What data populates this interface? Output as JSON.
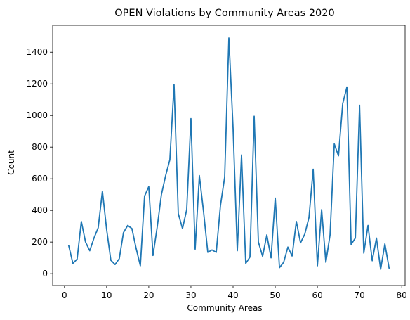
{
  "chart_data": {
    "type": "line",
    "title": "OPEN Violations by Community Areas 2020",
    "xlabel": "Community Areas",
    "ylabel": "Count",
    "xlim": [
      -2.8,
      80.8
    ],
    "ylim": [
      -75,
      1570
    ],
    "xticks": [
      0,
      10,
      20,
      30,
      40,
      50,
      60,
      70,
      80
    ],
    "yticks": [
      0,
      200,
      400,
      600,
      800,
      1000,
      1200,
      1400
    ],
    "grid": false,
    "color": "#1f77b4",
    "x": [
      1,
      2,
      3,
      4,
      5,
      6,
      7,
      8,
      9,
      10,
      11,
      12,
      13,
      14,
      15,
      16,
      17,
      18,
      19,
      20,
      21,
      22,
      23,
      24,
      25,
      26,
      27,
      28,
      29,
      30,
      31,
      32,
      33,
      34,
      35,
      36,
      37,
      38,
      39,
      40,
      41,
      42,
      43,
      44,
      45,
      46,
      47,
      48,
      49,
      50,
      51,
      52,
      53,
      54,
      55,
      56,
      57,
      58,
      59,
      60,
      61,
      62,
      63,
      64,
      65,
      66,
      67,
      68,
      69,
      70,
      71,
      72,
      73,
      74,
      75,
      76,
      77
    ],
    "y": [
      178,
      65,
      92,
      330,
      200,
      145,
      225,
      290,
      522,
      280,
      85,
      58,
      95,
      260,
      305,
      285,
      160,
      50,
      490,
      550,
      115,
      295,
      500,
      620,
      720,
      1195,
      380,
      285,
      405,
      980,
      155,
      620,
      390,
      135,
      150,
      135,
      430,
      610,
      1490,
      920,
      145,
      750,
      65,
      105,
      995,
      200,
      110,
      245,
      100,
      478,
      38,
      72,
      168,
      112,
      330,
      195,
      250,
      355,
      660,
      50,
      405,
      72,
      245,
      820,
      745,
      1075,
      1180,
      185,
      225,
      1065,
      130,
      305,
      82,
      225,
      28,
      188,
      35
    ]
  }
}
